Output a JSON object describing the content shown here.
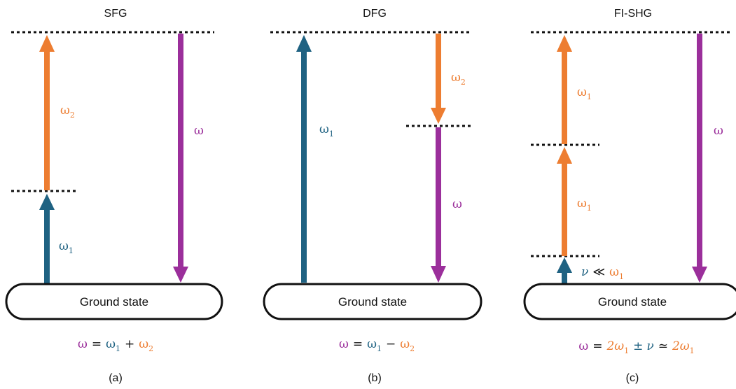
{
  "colors": {
    "blue": "#1f6282",
    "orange": "#ed7d31",
    "purple": "#9b2f9b",
    "dark": "#111111"
  },
  "panels": [
    {
      "title": "SFG",
      "ground_label": "Ground state",
      "label": "(a)",
      "arrow_labels": {
        "omega2": "ω",
        "omega2_sub": "2",
        "omega": "ω",
        "omega1": "ω",
        "omega1_sub": "1"
      },
      "equation": {
        "lhs": "ω",
        "eq": "=",
        "t1": "ω",
        "t1_sub": "1",
        "op": "+",
        "t2": "ω",
        "t2_sub": "2"
      }
    },
    {
      "title": "DFG",
      "ground_label": "Ground state",
      "label": "(b)",
      "arrow_labels": {
        "omega1": "ω",
        "omega1_sub": "1",
        "omega2": "ω",
        "omega2_sub": "2",
        "omega": "ω"
      },
      "equation": {
        "lhs": "ω",
        "eq": "=",
        "t1": "ω",
        "t1_sub": "1",
        "op": "−",
        "t2": "ω",
        "t2_sub": "2"
      }
    },
    {
      "title": "FI-SHG",
      "ground_label": "Ground state",
      "label": "(c)",
      "arrow_labels": {
        "omega1_top": "ω",
        "omega1_top_sub": "1",
        "omega1_mid": "ω",
        "omega1_mid_sub": "1",
        "omega": "ω",
        "nu": "ν",
        "ll": "≪",
        "nu_omega": "ω",
        "nu_omega_sub": "1"
      },
      "equation": {
        "lhs": "ω",
        "eq": "=",
        "t1": "2ω",
        "t1_sub": "1",
        "pm": "±",
        "nu": "ν",
        "approx": "≃",
        "t2": "2ω",
        "t2_sub": "1"
      }
    }
  ]
}
